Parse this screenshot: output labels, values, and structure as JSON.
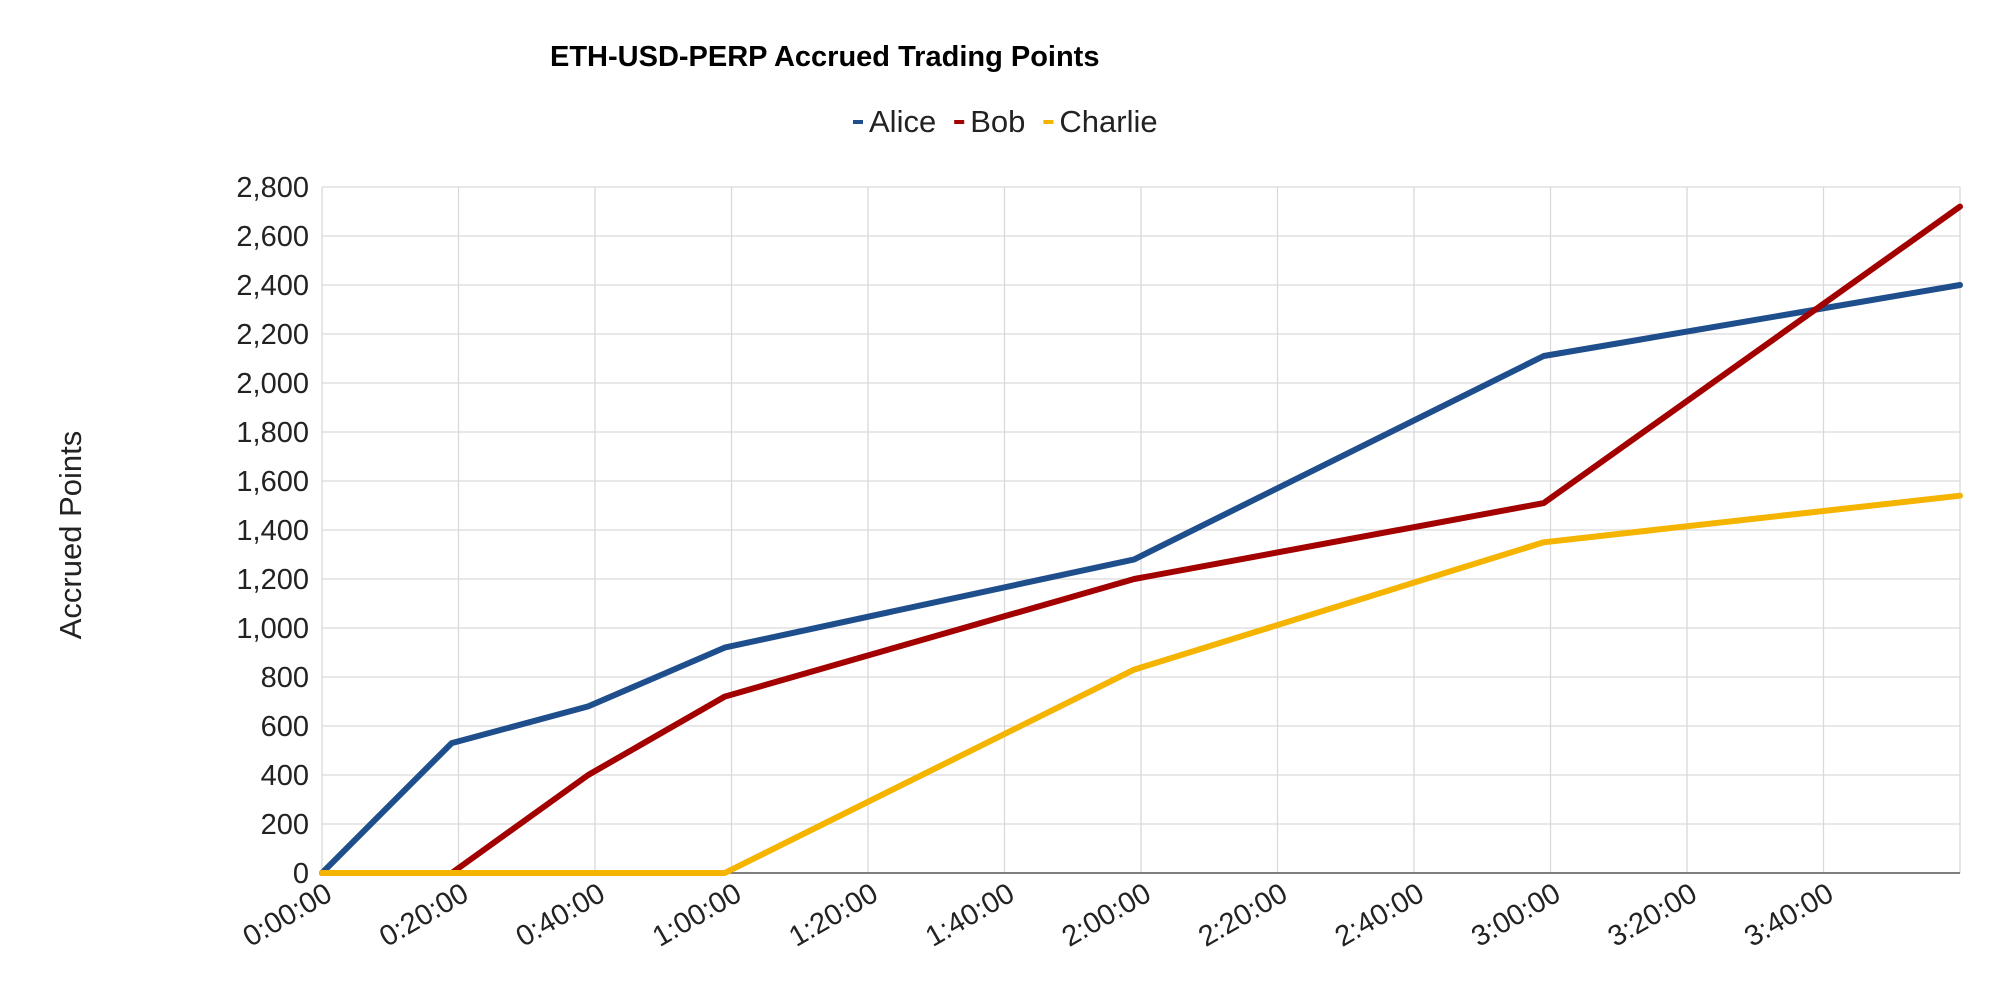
{
  "chart_data": {
    "type": "line",
    "title": "ETH-USD-PERP Accrued Trading Points",
    "xlabel": "",
    "ylabel": "Accrued Points",
    "x_tick_labels": [
      "0:00:00",
      "0:20:00",
      "0:40:00",
      "1:00:00",
      "1:20:00",
      "1:40:00",
      "2:00:00",
      "2:20:00",
      "2:40:00",
      "3:00:00",
      "3:20:00",
      "3:40:00"
    ],
    "y_tick_labels": [
      "0",
      "200",
      "400",
      "600",
      "800",
      "1,000",
      "1,200",
      "1,400",
      "1,600",
      "1,800",
      "2,000",
      "2,200",
      "2,400",
      "2,600",
      "2,800"
    ],
    "x_unit": "minutes elapsed",
    "xlim": [
      0,
      240
    ],
    "ylim": [
      0,
      2800
    ],
    "grid": true,
    "legend_position": "top-center",
    "series": [
      {
        "name": "Alice",
        "color": "#1f4e8c",
        "x": [
          0,
          19,
          39,
          59,
          119,
          179,
          240
        ],
        "values": [
          0,
          530,
          680,
          920,
          1280,
          2110,
          2400
        ]
      },
      {
        "name": "Bob",
        "color": "#a30000",
        "x": [
          0,
          19,
          39,
          59,
          119,
          179,
          240
        ],
        "values": [
          0,
          0,
          400,
          720,
          1200,
          1510,
          2720
        ]
      },
      {
        "name": "Charlie",
        "color": "#f4b400",
        "x": [
          0,
          19,
          39,
          59,
          119,
          179,
          240
        ],
        "values": [
          0,
          0,
          0,
          0,
          830,
          1350,
          1540
        ]
      }
    ]
  }
}
